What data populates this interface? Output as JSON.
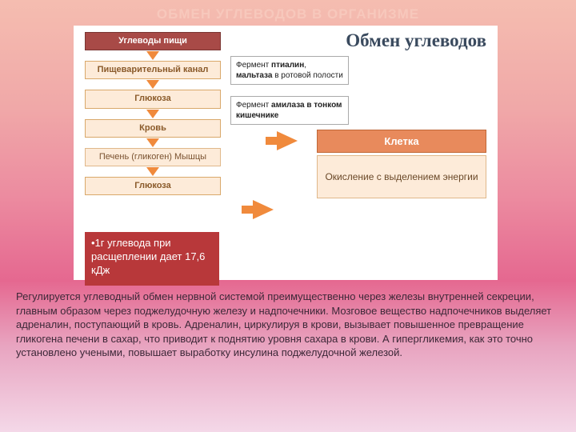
{
  "heading": "ОБМЕН УГЛЕВОДОВ В ОРГАНИЗМЕ",
  "diagram": {
    "main_title": "Обмен углеводов",
    "flow": {
      "b1": "Углеводы пищи",
      "b2": "Пищеварительный  канал",
      "b3": "Глюкоза",
      "b4": "Кровь",
      "b5": "Печень (гликоген) Мышцы",
      "b6": "Глюкоза"
    },
    "enzyme1_html": "Фермент <b>птиалин</b>, <b>мальтаза</b> в ротовой полости",
    "enzyme2_html": "Фермент <b>амилаза в тонком кишечнике</b>",
    "cell_label": "Клетка",
    "oxidation": "Окисление с выделением энергии",
    "bullet": "•1г углевода при расщеплении дает 17,6 кДж"
  },
  "paragraph": "Регулируется углеводный обмен нервной системой преимущественно через железы внутренней секреции, главным образом через поджелудочную железу и надпочечники. Мозговое вещество надпочечников выделяет адреналин, поступающий в кровь. Адреналин, циркулируя в крови, вызывает повышенное превращение гликогена печени в сахар, что приводит к поднятию уровня сахара в крови. А гипергликемия, как это точно установлено учеными, повышает выработку инсулина поджелудочной железой.",
  "colors": {
    "red_box_bg": "#a84a47",
    "orange_box_bg": "#fdebd9",
    "orange_box_border": "#d9a86a",
    "arrow": "#f08a3c",
    "bullet_bg": "#b8383a",
    "cell_bg": "#e88a5c"
  }
}
